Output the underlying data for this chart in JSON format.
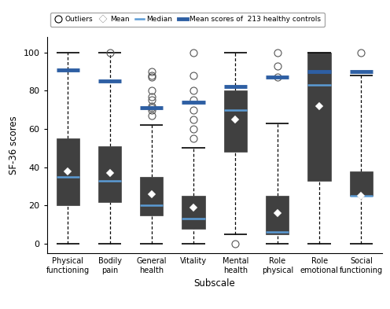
{
  "categories": [
    "Physical\nfunctioning",
    "Bodily\npain",
    "General\nhealth",
    "Vitality",
    "Mental\nhealth",
    "Role\nphysical",
    "Role\nemotional",
    "Social\nfunctioning"
  ],
  "boxes": [
    {
      "q1": 20,
      "median": 35,
      "q3": 55,
      "whisker_low": 0,
      "whisker_high": 100,
      "mean": 38,
      "outliers": [],
      "healthy_mean": 91
    },
    {
      "q1": 22,
      "median": 33,
      "q3": 51,
      "whisker_low": 0,
      "whisker_high": 100,
      "mean": 37,
      "outliers": [
        100
      ],
      "healthy_mean": 85
    },
    {
      "q1": 15,
      "median": 20,
      "q3": 35,
      "whisker_low": 0,
      "whisker_high": 62,
      "mean": 26,
      "outliers": [
        67,
        70,
        71,
        72,
        75,
        77,
        80,
        87,
        88,
        90
      ],
      "healthy_mean": 71
    },
    {
      "q1": 8,
      "median": 13,
      "q3": 25,
      "whisker_low": 0,
      "whisker_high": 50,
      "mean": 19,
      "outliers": [
        55,
        60,
        65,
        70,
        75,
        80,
        88,
        100
      ],
      "healthy_mean": 74
    },
    {
      "q1": 48,
      "median": 70,
      "q3": 80,
      "whisker_low": 5,
      "whisker_high": 100,
      "mean": 65,
      "outliers": [
        0
      ],
      "healthy_mean": 82
    },
    {
      "q1": 5,
      "median": 6,
      "q3": 25,
      "whisker_low": 0,
      "whisker_high": 63,
      "mean": 16,
      "outliers": [
        87,
        93,
        100
      ],
      "healthy_mean": 87
    },
    {
      "q1": 33,
      "median": 83,
      "q3": 100,
      "whisker_low": 0,
      "whisker_high": 100,
      "mean": 72,
      "outliers": [],
      "healthy_mean": 90
    },
    {
      "q1": 25,
      "median": 25,
      "q3": 38,
      "whisker_low": 0,
      "whisker_high": 88,
      "mean": 25,
      "outliers": [
        100
      ],
      "healthy_mean": 90
    }
  ],
  "ylabel": "SF-36 scores",
  "xlabel": "Subscale",
  "ylim": [
    -5,
    108
  ],
  "yticks": [
    0,
    20,
    40,
    60,
    80,
    100
  ],
  "box_color": "#404040",
  "box_edge_color": "#404040",
  "whisker_color": "black",
  "median_color": "#5b9bd5",
  "mean_color": "white",
  "healthy_color": "#2e5fa3",
  "outlier_edge_color": "#555555",
  "figsize": [
    4.96,
    3.93
  ],
  "dpi": 100
}
